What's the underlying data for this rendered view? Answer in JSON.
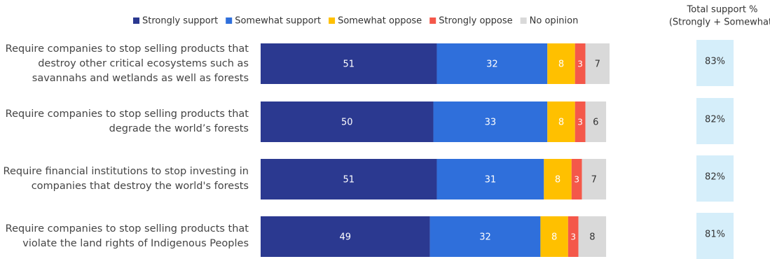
{
  "chart_data": {
    "type": "stacked_bar_horizontal",
    "categories": [
      "Require companies to stop selling products that destroy other critical ecosystems such as savannahs and wetlands as well as forests",
      "Require companies to stop selling products that degrade the world’s forests",
      "Require financial institutions to stop investing in companies that destroy the world's forests",
      "Require companies to stop selling products that violate the land rights of Indigenous Peoples"
    ],
    "series": [
      {
        "name": "Strongly support",
        "color": "#2b3990",
        "values": [
          51,
          50,
          51,
          49
        ]
      },
      {
        "name": "Somewhat support",
        "color": "#2f6fdb",
        "values": [
          32,
          33,
          31,
          32
        ]
      },
      {
        "name": "Somewhat oppose",
        "color": "#ffc000",
        "values": [
          8,
          8,
          8,
          8
        ]
      },
      {
        "name": "Strongly oppose",
        "color": "#f4584a",
        "values": [
          3,
          3,
          3,
          3
        ]
      },
      {
        "name": "No opinion",
        "color": "#d9d9d9",
        "values": [
          7,
          6,
          7,
          8
        ]
      }
    ],
    "xlim": [
      0,
      101
    ],
    "total_support": {
      "title": "Total support %",
      "subtitle": "(Strongly + Somewhat)",
      "color": "#d5eefa",
      "values": [
        83,
        82,
        82,
        81
      ],
      "value_labels": [
        "83%",
        "82%",
        "82%",
        "81%"
      ]
    }
  }
}
